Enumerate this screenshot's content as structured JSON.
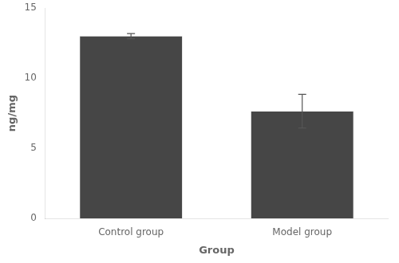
{
  "chart_data": {
    "type": "bar",
    "categories": [
      "Control group",
      "Model group"
    ],
    "values": [
      13.0,
      7.65
    ],
    "errors": [
      0.18,
      1.2
    ],
    "color": "#464646",
    "xlabel": "Group",
    "ylabel": "ng/mg",
    "ylim": [
      0,
      15
    ],
    "yticks": [
      0,
      5,
      10,
      15
    ],
    "grid": false
  }
}
